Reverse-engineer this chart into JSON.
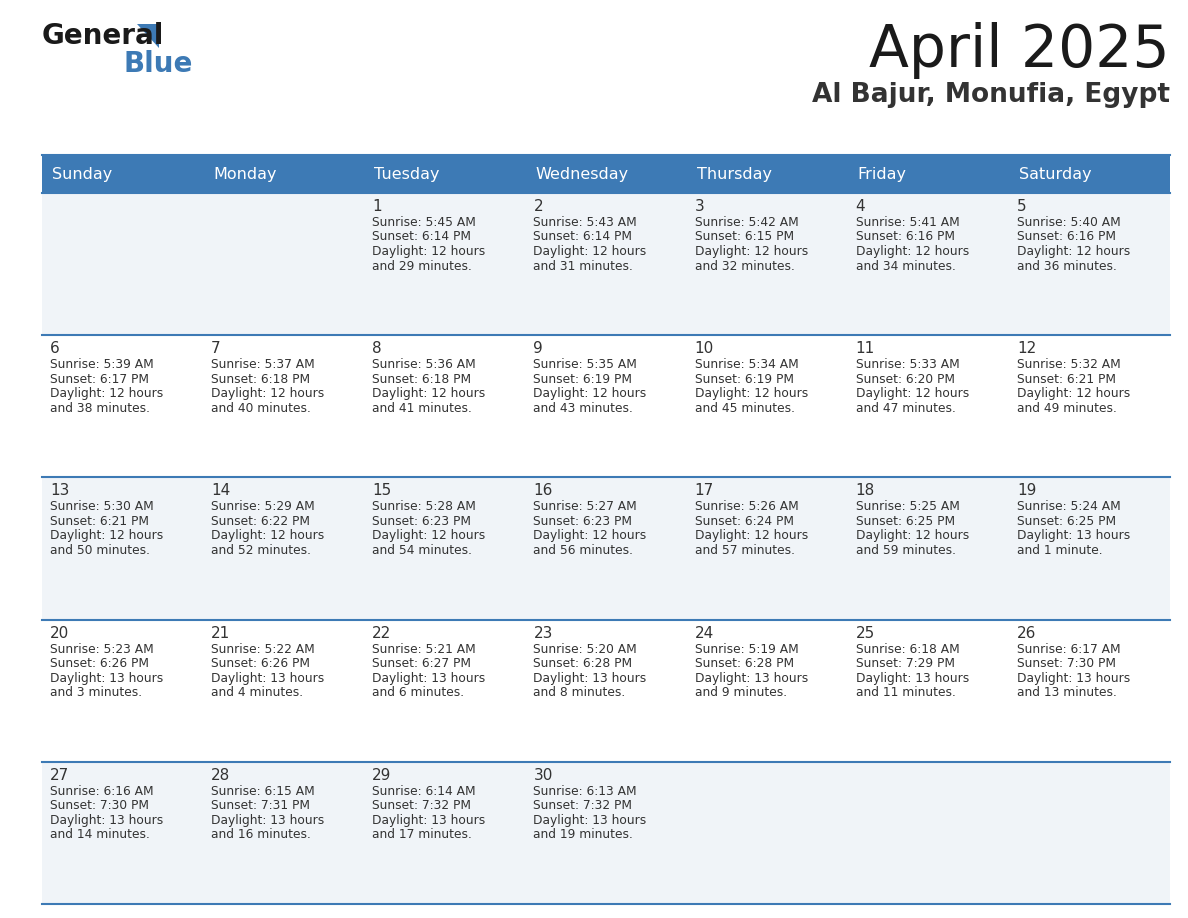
{
  "title": "April 2025",
  "subtitle": "Al Bajur, Monufia, Egypt",
  "header_color": "#3d7ab5",
  "header_text_color": "#ffffff",
  "day_names": [
    "Sunday",
    "Monday",
    "Tuesday",
    "Wednesday",
    "Thursday",
    "Friday",
    "Saturday"
  ],
  "bg_color": "#ffffff",
  "cell_bg_row0": "#f0f4f8",
  "cell_bg_row1": "#ffffff",
  "text_color": "#333333",
  "line_color": "#3d7ab5",
  "calendar_data": [
    [
      {
        "day": "",
        "sunrise": "",
        "sunset": "",
        "daylight": ""
      },
      {
        "day": "",
        "sunrise": "",
        "sunset": "",
        "daylight": ""
      },
      {
        "day": "1",
        "sunrise": "5:45 AM",
        "sunset": "6:14 PM",
        "daylight": "12 hours\nand 29 minutes."
      },
      {
        "day": "2",
        "sunrise": "5:43 AM",
        "sunset": "6:14 PM",
        "daylight": "12 hours\nand 31 minutes."
      },
      {
        "day": "3",
        "sunrise": "5:42 AM",
        "sunset": "6:15 PM",
        "daylight": "12 hours\nand 32 minutes."
      },
      {
        "day": "4",
        "sunrise": "5:41 AM",
        "sunset": "6:16 PM",
        "daylight": "12 hours\nand 34 minutes."
      },
      {
        "day": "5",
        "sunrise": "5:40 AM",
        "sunset": "6:16 PM",
        "daylight": "12 hours\nand 36 minutes."
      }
    ],
    [
      {
        "day": "6",
        "sunrise": "5:39 AM",
        "sunset": "6:17 PM",
        "daylight": "12 hours\nand 38 minutes."
      },
      {
        "day": "7",
        "sunrise": "5:37 AM",
        "sunset": "6:18 PM",
        "daylight": "12 hours\nand 40 minutes."
      },
      {
        "day": "8",
        "sunrise": "5:36 AM",
        "sunset": "6:18 PM",
        "daylight": "12 hours\nand 41 minutes."
      },
      {
        "day": "9",
        "sunrise": "5:35 AM",
        "sunset": "6:19 PM",
        "daylight": "12 hours\nand 43 minutes."
      },
      {
        "day": "10",
        "sunrise": "5:34 AM",
        "sunset": "6:19 PM",
        "daylight": "12 hours\nand 45 minutes."
      },
      {
        "day": "11",
        "sunrise": "5:33 AM",
        "sunset": "6:20 PM",
        "daylight": "12 hours\nand 47 minutes."
      },
      {
        "day": "12",
        "sunrise": "5:32 AM",
        "sunset": "6:21 PM",
        "daylight": "12 hours\nand 49 minutes."
      }
    ],
    [
      {
        "day": "13",
        "sunrise": "5:30 AM",
        "sunset": "6:21 PM",
        "daylight": "12 hours\nand 50 minutes."
      },
      {
        "day": "14",
        "sunrise": "5:29 AM",
        "sunset": "6:22 PM",
        "daylight": "12 hours\nand 52 minutes."
      },
      {
        "day": "15",
        "sunrise": "5:28 AM",
        "sunset": "6:23 PM",
        "daylight": "12 hours\nand 54 minutes."
      },
      {
        "day": "16",
        "sunrise": "5:27 AM",
        "sunset": "6:23 PM",
        "daylight": "12 hours\nand 56 minutes."
      },
      {
        "day": "17",
        "sunrise": "5:26 AM",
        "sunset": "6:24 PM",
        "daylight": "12 hours\nand 57 minutes."
      },
      {
        "day": "18",
        "sunrise": "5:25 AM",
        "sunset": "6:25 PM",
        "daylight": "12 hours\nand 59 minutes."
      },
      {
        "day": "19",
        "sunrise": "5:24 AM",
        "sunset": "6:25 PM",
        "daylight": "13 hours\nand 1 minute."
      }
    ],
    [
      {
        "day": "20",
        "sunrise": "5:23 AM",
        "sunset": "6:26 PM",
        "daylight": "13 hours\nand 3 minutes."
      },
      {
        "day": "21",
        "sunrise": "5:22 AM",
        "sunset": "6:26 PM",
        "daylight": "13 hours\nand 4 minutes."
      },
      {
        "day": "22",
        "sunrise": "5:21 AM",
        "sunset": "6:27 PM",
        "daylight": "13 hours\nand 6 minutes."
      },
      {
        "day": "23",
        "sunrise": "5:20 AM",
        "sunset": "6:28 PM",
        "daylight": "13 hours\nand 8 minutes."
      },
      {
        "day": "24",
        "sunrise": "5:19 AM",
        "sunset": "6:28 PM",
        "daylight": "13 hours\nand 9 minutes."
      },
      {
        "day": "25",
        "sunrise": "6:18 AM",
        "sunset": "7:29 PM",
        "daylight": "13 hours\nand 11 minutes."
      },
      {
        "day": "26",
        "sunrise": "6:17 AM",
        "sunset": "7:30 PM",
        "daylight": "13 hours\nand 13 minutes."
      }
    ],
    [
      {
        "day": "27",
        "sunrise": "6:16 AM",
        "sunset": "7:30 PM",
        "daylight": "13 hours\nand 14 minutes."
      },
      {
        "day": "28",
        "sunrise": "6:15 AM",
        "sunset": "7:31 PM",
        "daylight": "13 hours\nand 16 minutes."
      },
      {
        "day": "29",
        "sunrise": "6:14 AM",
        "sunset": "7:32 PM",
        "daylight": "13 hours\nand 17 minutes."
      },
      {
        "day": "30",
        "sunrise": "6:13 AM",
        "sunset": "7:32 PM",
        "daylight": "13 hours\nand 19 minutes."
      },
      {
        "day": "",
        "sunrise": "",
        "sunset": "",
        "daylight": ""
      },
      {
        "day": "",
        "sunrise": "",
        "sunset": "",
        "daylight": ""
      },
      {
        "day": "",
        "sunrise": "",
        "sunset": "",
        "daylight": ""
      }
    ]
  ]
}
